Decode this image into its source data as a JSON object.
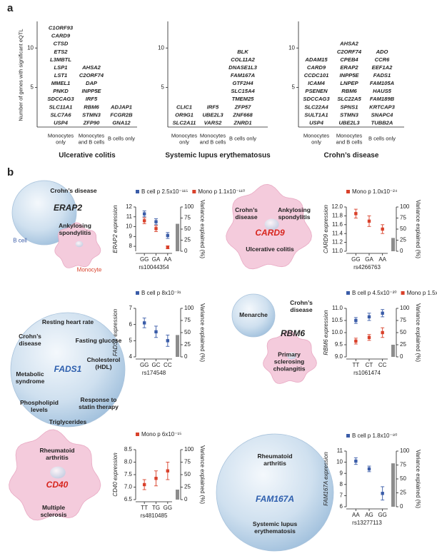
{
  "panel_a": {
    "label": "a",
    "ylabel": "Number of genes with significant eQTL",
    "ylim": [
      0,
      13
    ],
    "yticks": [
      5,
      10
    ],
    "diseases": [
      {
        "title": "Ulcerative colitis",
        "groups": [
          {
            "label": "Monocytes only",
            "color": "#d7261e",
            "genes": [
              "C1ORF93",
              "CARD9",
              "CTSD",
              "ETS2",
              "L3MBTL",
              "LSP1",
              "LST1",
              "MMEL1",
              "PNKD",
              "SDCCAG3",
              "SLC11A1",
              "SLC7A6",
              "USP4"
            ]
          },
          {
            "label": "Monocytes and B cells",
            "color": "#1a1a1a",
            "genes": [
              "AHSA2",
              "C2ORF74",
              "DAP",
              "INPP5E",
              "IRF5",
              "RBM6",
              "STMN3",
              "ZFP90"
            ]
          },
          {
            "label": "B cells only",
            "color": "#2e7fc1",
            "genes": [
              "ADJAP1",
              "FCGR2B",
              "GNA12"
            ]
          }
        ]
      },
      {
        "title": "Systemic lupus erythematosus",
        "groups": [
          {
            "label": "Monocytes only",
            "color": "#d7261e",
            "genes": [
              "CLIC1",
              "OR9G1",
              "SLC2A11"
            ]
          },
          {
            "label": "Monocytes and B cells",
            "color": "#1a1a1a",
            "genes": [
              "IRF5",
              "UBE2L3",
              "VARS2"
            ]
          },
          {
            "label": "B cells only",
            "color": "#2e7fc1",
            "genes": [
              "BLK",
              "COL11A2",
              "DNASE1L3",
              "FAM167A",
              "GTF2H4",
              "SLC15A4",
              "TMEM25",
              "ZFP57",
              "ZNF668",
              "ZNRD1"
            ]
          }
        ]
      },
      {
        "title": "Crohn’s disease",
        "groups": [
          {
            "label": "Monocytes only",
            "color": "#d7261e",
            "genes": [
              "ADAM15",
              "CARD9",
              "CCDC101",
              "ICAM4",
              "PSENEN",
              "SDCCAG3",
              "SLC22A4",
              "SULT1A1",
              "USP4"
            ]
          },
          {
            "label": "Monocytes and B cells",
            "color": "#1a1a1a",
            "genes": [
              "AHSA2",
              "C2ORF74",
              "CPEB4",
              "ERAP2",
              "INPP5E",
              "LNPEP",
              "RBM6",
              "SLC22A5",
              "SPNS1",
              "STMN3",
              "UBE2L3"
            ]
          },
          {
            "label": "B cells only",
            "color": "#2e7fc1",
            "genes": [
              "ADO",
              "CCR6",
              "EEF1A2",
              "FADS1",
              "FAM105A",
              "HAUS5",
              "FAM189B",
              "KRTCAP3",
              "SNAPC4",
              "TUBB2A"
            ]
          }
        ]
      }
    ]
  },
  "panel_b": {
    "label": "b",
    "diagrams": [
      {
        "gene": "ERAP2",
        "traits": [
          "Crohn’s disease",
          "Ankylosing spondylitis"
        ],
        "cell_labels": [
          "B cell",
          "Monocyte"
        ]
      },
      {
        "gene": "CARD9",
        "traits": [
          "Crohn’s disease",
          "Ankylosing spondylitis",
          "Ulcerative colitis"
        ]
      },
      {
        "gene": "FADS1",
        "traits": [
          "Resting heart rate",
          "Crohn’s disease",
          "Fasting glucose",
          "Metabolic syndrome",
          "Cholesterol (HDL)",
          "Phospholipid levels",
          "Response to statin therapy",
          "Triglycerides"
        ]
      },
      {
        "gene": "RBM6",
        "traits": [
          "Menarche",
          "Crohn’s disease",
          "Primary sclerosing cholangitis"
        ]
      },
      {
        "gene": "CD40",
        "traits": [
          "Rheumatoid arthritis",
          "Multiple sclerosis"
        ]
      },
      {
        "gene": "FAM167A",
        "traits": [
          "Rheumatoid arthritis",
          "Systemic lupus erythematosis"
        ]
      }
    ]
  },
  "chart_data": [
    {
      "type": "errorbar",
      "ylabel": "ERAP2 expression",
      "xlabel": "rs10044354",
      "categories": [
        "GG",
        "GA",
        "AA"
      ],
      "series": [
        {
          "name": "B cell p 2.5x10⁻¹¹⁵",
          "color": "#3a5ca8",
          "values": [
            11.3,
            10.5,
            9.1
          ],
          "errors": [
            0.3,
            0.3,
            0.3
          ]
        },
        {
          "name": "Mono p 1.1x10⁻¹¹⁰",
          "color": "#d9412b",
          "values": [
            10.6,
            9.8,
            7.9
          ],
          "errors": [
            0.3,
            0.3,
            0.15
          ]
        }
      ],
      "ylim": [
        7.5,
        12
      ],
      "yticks": [
        8,
        9,
        10,
        11,
        12
      ],
      "y2label": "Variance explained (%)",
      "y2lim": [
        0,
        100
      ],
      "y2ticks": [
        0,
        25,
        50,
        75,
        100
      ],
      "variance_explained": 62,
      "variance_color": "#8c8c8c"
    },
    {
      "type": "errorbar",
      "ylabel": "CARD9 expression",
      "xlabel": "rs4266763",
      "categories": [
        "GG",
        "GA",
        "AA"
      ],
      "series": [
        {
          "name": "Mono p 1.0x10⁻²⁴",
          "color": "#d9412b",
          "values": [
            11.85,
            11.68,
            11.5
          ],
          "errors": [
            0.1,
            0.12,
            0.1
          ]
        }
      ],
      "ylim": [
        11,
        12
      ],
      "yticks": [
        {
          "value": 11,
          "label": "11.0"
        },
        11.2,
        11.4,
        11.6,
        11.8,
        {
          "value": 12,
          "label": "12.0"
        }
      ],
      "y2label": "Variance explained (%)",
      "y2lim": [
        0,
        100
      ],
      "y2ticks": [
        0,
        25,
        50,
        75,
        100
      ],
      "variance_explained": 30,
      "variance_color": "#8c8c8c"
    },
    {
      "type": "errorbar",
      "ylabel": "FADS1 expression",
      "xlabel": "rs174548",
      "categories": [
        "GG",
        "GC",
        "CC"
      ],
      "series": [
        {
          "name": "B cell p 8x10⁻³¹",
          "color": "#3a5ca8",
          "values": [
            6.1,
            5.55,
            5.0
          ],
          "errors": [
            0.3,
            0.35,
            0.35
          ]
        }
      ],
      "ylim": [
        4,
        7
      ],
      "yticks": [
        4,
        5,
        6,
        7
      ],
      "y2label": "Variance explained (%)",
      "y2lim": [
        0,
        100
      ],
      "y2ticks": [
        0,
        25,
        50,
        75,
        100
      ],
      "variance_explained": 45,
      "variance_color": "#8c8c8c"
    },
    {
      "type": "errorbar",
      "ylabel": "RBM6 expression",
      "xlabel": "rs1061474",
      "categories": [
        "TT",
        "CT",
        "CC"
      ],
      "series": [
        {
          "name": "B cell p 4.5x10⁻²⁰",
          "color": "#3a5ca8",
          "values": [
            10.5,
            10.65,
            10.8
          ],
          "errors": [
            0.12,
            0.15,
            0.15
          ]
        },
        {
          "name": "Mono p 1.5x10⁻¹⁶",
          "color": "#d9412b",
          "values": [
            9.65,
            9.8,
            10.0
          ],
          "errors": [
            0.12,
            0.12,
            0.2
          ]
        }
      ],
      "ylim": [
        9,
        11
      ],
      "yticks": [
        {
          "value": 9,
          "label": "9.0"
        },
        9.5,
        {
          "value": 10,
          "label": "10.0"
        },
        10.5,
        {
          "value": 11,
          "label": "11.0"
        }
      ],
      "y2label": "Variance explained (%)",
      "y2lim": [
        0,
        100
      ],
      "y2ticks": [
        0,
        25,
        50,
        75,
        100
      ],
      "variance_explained": 25,
      "variance_color": "#8c8c8c"
    },
    {
      "type": "errorbar",
      "ylabel": "CD40 expression",
      "xlabel": "rs4810485",
      "categories": [
        "TT",
        "TG",
        "GG"
      ],
      "series": [
        {
          "name": "Mono p 6x10⁻¹⁵",
          "color": "#d9412b",
          "values": [
            7.1,
            7.35,
            7.65
          ],
          "errors": [
            0.2,
            0.3,
            0.35
          ]
        }
      ],
      "ylim": [
        6.5,
        8.5
      ],
      "yticks": [
        6.5,
        {
          "value": 7,
          "label": "7.0"
        },
        7.5,
        {
          "value": 8,
          "label": "8.0"
        },
        8.5
      ],
      "y2label": "Variance explained (%)",
      "y2lim": [
        0,
        100
      ],
      "y2ticks": [
        0,
        25,
        50,
        75,
        100
      ],
      "variance_explained": 20,
      "variance_color": "#8c8c8c"
    },
    {
      "type": "errorbar",
      "ylabel": "FAM167A expression",
      "xlabel": "rs13277113",
      "categories": [
        "AA",
        "AG",
        "GG"
      ],
      "series": [
        {
          "name": "B cell p 1.8x10⁻⁸⁰",
          "color": "#3a5ca8",
          "values": [
            10.1,
            9.4,
            7.2
          ],
          "errors": [
            0.3,
            0.25,
            0.6
          ]
        }
      ],
      "ylim": [
        6,
        11
      ],
      "yticks": [
        6,
        7,
        8,
        9,
        10,
        11
      ],
      "y2label": "Variance explained (%)",
      "y2lim": [
        0,
        100
      ],
      "y2ticks": [
        0,
        25,
        50,
        75,
        100
      ],
      "variance_explained": 78,
      "variance_color": "#8c8c8c"
    }
  ]
}
